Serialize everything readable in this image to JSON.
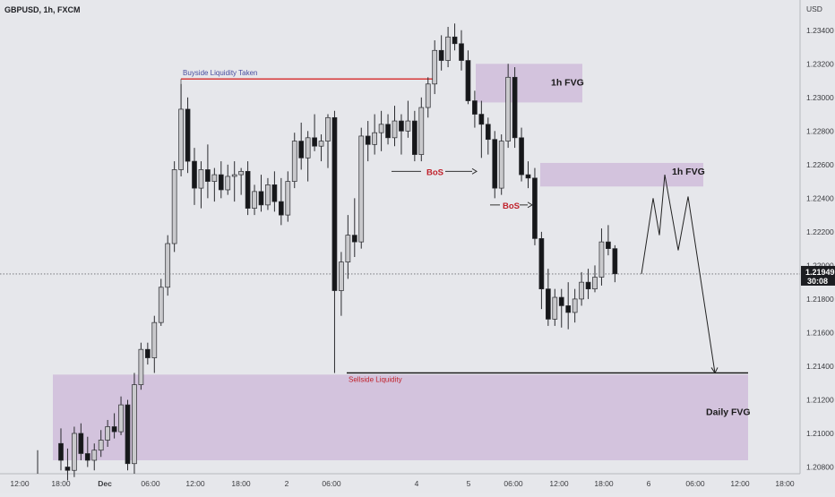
{
  "header": {
    "symbol": "GBPUSD, 1h, FXCM",
    "currency": "USD"
  },
  "colors": {
    "bull_fill": "#c9c9cc",
    "bear_fill": "#16171a",
    "wick": "#2a2b2f",
    "zone_fill": "#cdb8d8",
    "bos_red": "#c0212b",
    "buyside_line": "#d62a2a"
  },
  "chart_data": {
    "type": "candlestick",
    "ylim": [
      1.2076,
      1.2358
    ],
    "y_ticks": [
      "1.23400",
      "1.23200",
      "1.23000",
      "1.22800",
      "1.22600",
      "1.22400",
      "1.22200",
      "1.22000",
      "1.21800",
      "1.21600",
      "1.21400",
      "1.21200",
      "1.21000",
      "1.20800"
    ],
    "x_ticks": [
      "12:00",
      "18:00",
      "Dec",
      "06:00",
      "12:00",
      "18:00",
      "2",
      "06:00",
      "4",
      "5",
      "06:00",
      "12:00",
      "18:00",
      "6",
      "06:00",
      "12:00",
      "18:00"
    ],
    "current_price": "1.21949",
    "countdown": "30:08",
    "current_price_value": 1.21949,
    "candles": [
      {
        "o": 1.2094,
        "h": 1.2103,
        "l": 1.2078,
        "c": 1.2084
      },
      {
        "o": 1.208,
        "h": 1.2091,
        "l": 1.2072,
        "c": 1.2078
      },
      {
        "o": 1.2078,
        "h": 1.2104,
        "l": 1.2074,
        "c": 1.21
      },
      {
        "o": 1.21,
        "h": 1.2106,
        "l": 1.2084,
        "c": 1.2088
      },
      {
        "o": 1.2088,
        "h": 1.2098,
        "l": 1.208,
        "c": 1.2084
      },
      {
        "o": 1.2084,
        "h": 1.2094,
        "l": 1.2078,
        "c": 1.209
      },
      {
        "o": 1.209,
        "h": 1.2102,
        "l": 1.2086,
        "c": 1.2096
      },
      {
        "o": 1.2096,
        "h": 1.2108,
        "l": 1.2092,
        "c": 1.2104
      },
      {
        "o": 1.2104,
        "h": 1.2112,
        "l": 1.2097,
        "c": 1.2101
      },
      {
        "o": 1.2101,
        "h": 1.2122,
        "l": 1.2099,
        "c": 1.2117
      },
      {
        "o": 1.2117,
        "h": 1.212,
        "l": 1.2078,
        "c": 1.2082
      },
      {
        "o": 1.2082,
        "h": 1.2136,
        "l": 1.2076,
        "c": 1.2129
      },
      {
        "o": 1.2129,
        "h": 1.2154,
        "l": 1.2126,
        "c": 1.215
      },
      {
        "o": 1.215,
        "h": 1.2154,
        "l": 1.2141,
        "c": 1.2145
      },
      {
        "o": 1.2145,
        "h": 1.217,
        "l": 1.2136,
        "c": 1.2166
      },
      {
        "o": 1.2166,
        "h": 1.2192,
        "l": 1.2164,
        "c": 1.2187
      },
      {
        "o": 1.2187,
        "h": 1.2218,
        "l": 1.2182,
        "c": 1.2213
      },
      {
        "o": 1.2213,
        "h": 1.2262,
        "l": 1.2208,
        "c": 1.2257
      },
      {
        "o": 1.2257,
        "h": 1.2308,
        "l": 1.2253,
        "c": 1.2293
      },
      {
        "o": 1.2293,
        "h": 1.23,
        "l": 1.2255,
        "c": 1.2262
      },
      {
        "o": 1.2262,
        "h": 1.227,
        "l": 1.2236,
        "c": 1.2246
      },
      {
        "o": 1.2246,
        "h": 1.2262,
        "l": 1.2234,
        "c": 1.2257
      },
      {
        "o": 1.2257,
        "h": 1.2272,
        "l": 1.224,
        "c": 1.225
      },
      {
        "o": 1.225,
        "h": 1.2258,
        "l": 1.2238,
        "c": 1.2254
      },
      {
        "o": 1.2254,
        "h": 1.2262,
        "l": 1.224,
        "c": 1.2245
      },
      {
        "o": 1.2245,
        "h": 1.226,
        "l": 1.2242,
        "c": 1.2253
      },
      {
        "o": 1.2253,
        "h": 1.2262,
        "l": 1.2238,
        "c": 1.2254
      },
      {
        "o": 1.2254,
        "h": 1.2258,
        "l": 1.2242,
        "c": 1.2256
      },
      {
        "o": 1.2256,
        "h": 1.2262,
        "l": 1.223,
        "c": 1.2234
      },
      {
        "o": 1.2234,
        "h": 1.2248,
        "l": 1.223,
        "c": 1.2244
      },
      {
        "o": 1.2244,
        "h": 1.2254,
        "l": 1.2232,
        "c": 1.2236
      },
      {
        "o": 1.2236,
        "h": 1.2252,
        "l": 1.2233,
        "c": 1.2248
      },
      {
        "o": 1.2248,
        "h": 1.2256,
        "l": 1.2232,
        "c": 1.2238
      },
      {
        "o": 1.2238,
        "h": 1.2252,
        "l": 1.2224,
        "c": 1.223
      },
      {
        "o": 1.223,
        "h": 1.2256,
        "l": 1.2226,
        "c": 1.225
      },
      {
        "o": 1.225,
        "h": 1.2279,
        "l": 1.2246,
        "c": 1.2274
      },
      {
        "o": 1.2274,
        "h": 1.2285,
        "l": 1.2257,
        "c": 1.2264
      },
      {
        "o": 1.2264,
        "h": 1.228,
        "l": 1.225,
        "c": 1.2276
      },
      {
        "o": 1.2276,
        "h": 1.229,
        "l": 1.2268,
        "c": 1.2271
      },
      {
        "o": 1.2271,
        "h": 1.2278,
        "l": 1.2262,
        "c": 1.2274
      },
      {
        "o": 1.2274,
        "h": 1.229,
        "l": 1.2258,
        "c": 1.2288
      },
      {
        "o": 1.2288,
        "h": 1.2292,
        "l": 1.2136,
        "c": 1.2185
      },
      {
        "o": 1.2185,
        "h": 1.2208,
        "l": 1.217,
        "c": 1.2202
      },
      {
        "o": 1.2202,
        "h": 1.223,
        "l": 1.2192,
        "c": 1.2218
      },
      {
        "o": 1.2218,
        "h": 1.224,
        "l": 1.2205,
        "c": 1.2214
      },
      {
        "o": 1.2214,
        "h": 1.2282,
        "l": 1.221,
        "c": 1.2277
      },
      {
        "o": 1.2277,
        "h": 1.2286,
        "l": 1.2262,
        "c": 1.2272
      },
      {
        "o": 1.2272,
        "h": 1.229,
        "l": 1.2266,
        "c": 1.2279
      },
      {
        "o": 1.2279,
        "h": 1.2292,
        "l": 1.2268,
        "c": 1.2284
      },
      {
        "o": 1.2284,
        "h": 1.229,
        "l": 1.2272,
        "c": 1.2276
      },
      {
        "o": 1.2276,
        "h": 1.2295,
        "l": 1.2271,
        "c": 1.2286
      },
      {
        "o": 1.2286,
        "h": 1.229,
        "l": 1.2266,
        "c": 1.228
      },
      {
        "o": 1.228,
        "h": 1.2298,
        "l": 1.2276,
        "c": 1.2286
      },
      {
        "o": 1.2286,
        "h": 1.2292,
        "l": 1.2262,
        "c": 1.2266
      },
      {
        "o": 1.2266,
        "h": 1.23,
        "l": 1.2262,
        "c": 1.2294
      },
      {
        "o": 1.2294,
        "h": 1.2312,
        "l": 1.2288,
        "c": 1.2308
      },
      {
        "o": 1.2308,
        "h": 1.2334,
        "l": 1.2302,
        "c": 1.2328
      },
      {
        "o": 1.2328,
        "h": 1.2337,
        "l": 1.2316,
        "c": 1.2322
      },
      {
        "o": 1.2322,
        "h": 1.2342,
        "l": 1.2318,
        "c": 1.2336
      },
      {
        "o": 1.2336,
        "h": 1.2344,
        "l": 1.2328,
        "c": 1.2332
      },
      {
        "o": 1.2332,
        "h": 1.234,
        "l": 1.2316,
        "c": 1.2322
      },
      {
        "o": 1.2322,
        "h": 1.2328,
        "l": 1.2296,
        "c": 1.2298
      },
      {
        "o": 1.2298,
        "h": 1.2304,
        "l": 1.2282,
        "c": 1.229
      },
      {
        "o": 1.229,
        "h": 1.2298,
        "l": 1.2264,
        "c": 1.2284
      },
      {
        "o": 1.2284,
        "h": 1.2288,
        "l": 1.2266,
        "c": 1.2275
      },
      {
        "o": 1.2275,
        "h": 1.228,
        "l": 1.224,
        "c": 1.2246
      },
      {
        "o": 1.2246,
        "h": 1.2278,
        "l": 1.2242,
        "c": 1.2274
      },
      {
        "o": 1.2274,
        "h": 1.232,
        "l": 1.227,
        "c": 1.2312
      },
      {
        "o": 1.2312,
        "h": 1.2318,
        "l": 1.227,
        "c": 1.2276
      },
      {
        "o": 1.2276,
        "h": 1.2282,
        "l": 1.225,
        "c": 1.2254
      },
      {
        "o": 1.2254,
        "h": 1.2262,
        "l": 1.2246,
        "c": 1.2252
      },
      {
        "o": 1.2252,
        "h": 1.2258,
        "l": 1.2212,
        "c": 1.2216
      },
      {
        "o": 1.2216,
        "h": 1.222,
        "l": 1.2174,
        "c": 1.2186
      },
      {
        "o": 1.2186,
        "h": 1.2198,
        "l": 1.2164,
        "c": 1.2168
      },
      {
        "o": 1.2168,
        "h": 1.2186,
        "l": 1.2164,
        "c": 1.2181
      },
      {
        "o": 1.2181,
        "h": 1.2186,
        "l": 1.2163,
        "c": 1.2176
      },
      {
        "o": 1.2176,
        "h": 1.219,
        "l": 1.2162,
        "c": 1.2172
      },
      {
        "o": 1.2172,
        "h": 1.2186,
        "l": 1.2166,
        "c": 1.218
      },
      {
        "o": 1.218,
        "h": 1.2196,
        "l": 1.2176,
        "c": 1.219
      },
      {
        "o": 1.219,
        "h": 1.2198,
        "l": 1.218,
        "c": 1.2186
      },
      {
        "o": 1.2186,
        "h": 1.22,
        "l": 1.2184,
        "c": 1.2193
      },
      {
        "o": 1.2193,
        "h": 1.2222,
        "l": 1.2188,
        "c": 1.2214
      },
      {
        "o": 1.2214,
        "h": 1.2224,
        "l": 1.2206,
        "c": 1.221
      },
      {
        "o": 1.221,
        "h": 1.2212,
        "l": 1.219,
        "c": 1.2195
      }
    ],
    "zones": [
      {
        "label": "1h FVG",
        "y_top": 1.232,
        "y_bottom": 1.2297
      },
      {
        "label": "1h FVG",
        "y_top": 1.2261,
        "y_bottom": 1.2247
      },
      {
        "label": "Daily FVG",
        "y_top": 1.2135,
        "y_bottom": 1.2084
      }
    ],
    "liquidity": [
      {
        "label": "Buyside Liquidity Taken",
        "price": 1.2311
      },
      {
        "label": "Sellside Liquidity",
        "price": 1.2136
      }
    ],
    "bos": [
      {
        "label": "BoS",
        "price": 1.2256
      },
      {
        "label": "BoS",
        "price": 1.2236
      }
    ],
    "projection": [
      1.2195,
      1.224,
      1.2218,
      1.2254,
      1.2222,
      1.2241,
      1.2208,
      1.2136
    ]
  }
}
